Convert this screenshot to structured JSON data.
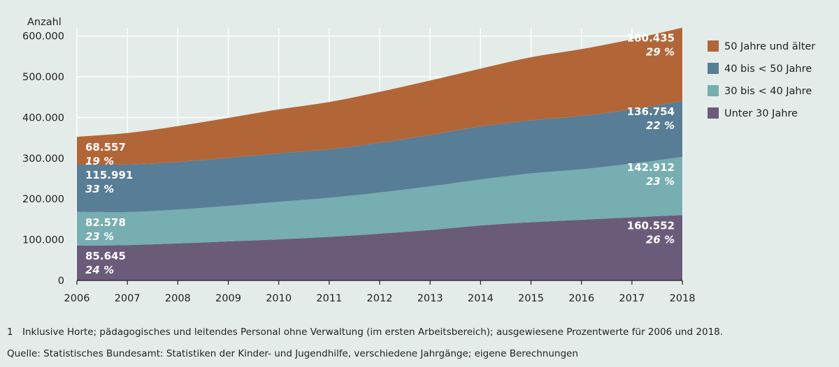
{
  "chart_data": {
    "type": "area",
    "stacked": true,
    "ylabel": "Anzahl",
    "ylim": [
      0,
      620000
    ],
    "yticks": [
      0,
      100000,
      200000,
      300000,
      400000,
      500000,
      600000
    ],
    "ytick_labels": [
      "0",
      "100.000",
      "200.000",
      "300.000",
      "400.000",
      "500.000",
      "600.000"
    ],
    "x": [
      "2006",
      "2007",
      "2008",
      "2009",
      "2010",
      "2011",
      "2012",
      "2013",
      "2014",
      "2015",
      "2016",
      "2017",
      "2018"
    ],
    "grid": true,
    "legend_position": "right",
    "series": [
      {
        "name": "Unter 30 Jahre",
        "color": "#6b5b7b",
        "values": [
          85645,
          87000,
          91000,
          96000,
          101000,
          107000,
          115000,
          124000,
          135000,
          143000,
          149000,
          155000,
          160552
        ]
      },
      {
        "name": "30 bis < 40 Jahre",
        "color": "#76aeb1",
        "values": [
          82578,
          81000,
          83000,
          87000,
          92000,
          96000,
          101000,
          107000,
          113000,
          120000,
          124000,
          132000,
          142912
        ]
      },
      {
        "name": "40 bis < 50 Jahre",
        "color": "#587d96",
        "values": [
          115991,
          117000,
          117000,
          118000,
          119000,
          119000,
          122000,
          126000,
          130000,
          130000,
          131000,
          133000,
          136754
        ]
      },
      {
        "name": "50 Jahre und älter",
        "color": "#b26637",
        "values": [
          68557,
          77000,
          88000,
          98000,
          108000,
          116000,
          125000,
          134000,
          142000,
          155000,
          164000,
          172000,
          180435
        ]
      }
    ],
    "annotations": [
      {
        "series": 3,
        "side": "start",
        "value": "68.557",
        "percent": "19 %"
      },
      {
        "series": 2,
        "side": "start",
        "value": "115.991",
        "percent": "33 %"
      },
      {
        "series": 1,
        "side": "start",
        "value": "82.578",
        "percent": "23 %"
      },
      {
        "series": 0,
        "side": "start",
        "value": "85.645",
        "percent": "24 %"
      },
      {
        "series": 3,
        "side": "end",
        "value": "180.435",
        "percent": "29 %"
      },
      {
        "series": 2,
        "side": "end",
        "value": "136.754",
        "percent": "22 %"
      },
      {
        "series": 1,
        "side": "end",
        "value": "142.912",
        "percent": "23 %"
      },
      {
        "series": 0,
        "side": "end",
        "value": "160.552",
        "percent": "26 %"
      }
    ],
    "legend": [
      "50 Jahre und älter",
      "40 bis < 50 Jahre",
      "30 bis < 40 Jahre",
      "Unter 30 Jahre"
    ]
  },
  "footnotes": {
    "note_number": "1",
    "note_text": "Inklusive Horte; pädagogisches und leitendes Personal ohne Verwaltung (im ersten Arbeitsbereich); ausgewiesene Prozentwerte für 2006 und 2018.",
    "source": "Quelle: Statistisches Bundesamt: Statistiken der Kinder- und Jugendhilfe, verschiedene Jahrgänge; eigene Berechnungen"
  }
}
